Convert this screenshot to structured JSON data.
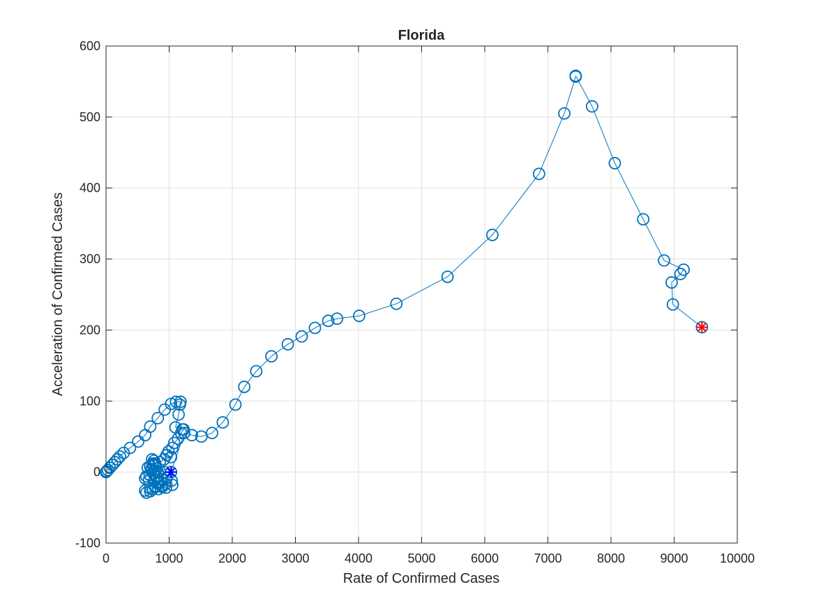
{
  "chart_data": {
    "type": "scatter",
    "title": "Florida",
    "xlabel": "Rate of Confirmed Cases",
    "ylabel": "Acceleration of Confirmed Cases",
    "xlim": [
      0,
      10000
    ],
    "ylim": [
      -100,
      600
    ],
    "xticks": [
      0,
      1000,
      2000,
      3000,
      4000,
      5000,
      6000,
      7000,
      8000,
      9000,
      10000
    ],
    "yticks": [
      -100,
      0,
      100,
      200,
      300,
      400,
      500,
      600
    ],
    "xtick_labels": [
      "0",
      "1000",
      "2000",
      "3000",
      "4000",
      "5000",
      "6000",
      "7000",
      "8000",
      "9000",
      "10000"
    ],
    "ytick_labels": [
      "-100",
      "0",
      "100",
      "200",
      "300",
      "400",
      "500",
      "600"
    ],
    "grid": true,
    "series_color": "#0072BD",
    "start_marker": {
      "x": 1030,
      "y": 0,
      "color": "#0000FF"
    },
    "end_marker": {
      "x": 9440,
      "y": 204,
      "color": "#FF0000"
    },
    "series": [
      {
        "marker": "circle",
        "line": true,
        "points": [
          [
            0,
            0
          ],
          [
            10,
            1
          ],
          [
            30,
            3
          ],
          [
            60,
            6
          ],
          [
            100,
            10
          ],
          [
            140,
            14
          ],
          [
            180,
            18
          ],
          [
            220,
            22
          ],
          [
            280,
            27
          ],
          [
            380,
            34
          ],
          [
            510,
            43
          ],
          [
            620,
            52
          ],
          [
            700,
            64
          ],
          [
            820,
            76
          ],
          [
            930,
            88
          ],
          [
            1030,
            96
          ],
          [
            1110,
            99
          ],
          [
            1180,
            99
          ],
          [
            1170,
            95
          ],
          [
            1150,
            81
          ],
          [
            1100,
            63
          ],
          [
            1210,
            60
          ],
          [
            1230,
            60
          ],
          [
            1190,
            55
          ],
          [
            1140,
            47
          ],
          [
            1080,
            41
          ],
          [
            1050,
            34
          ],
          [
            990,
            29
          ],
          [
            960,
            24
          ],
          [
            1030,
            21
          ],
          [
            920,
            18
          ],
          [
            850,
            14
          ],
          [
            780,
            12
          ],
          [
            740,
            10
          ],
          [
            700,
            8
          ],
          [
            660,
            6
          ],
          [
            720,
            4
          ],
          [
            780,
            2
          ],
          [
            820,
            0
          ],
          [
            750,
            -2
          ],
          [
            690,
            -4
          ],
          [
            640,
            -6
          ],
          [
            620,
            -9
          ],
          [
            680,
            -11
          ],
          [
            760,
            -13
          ],
          [
            830,
            -16
          ],
          [
            880,
            -19
          ],
          [
            950,
            -22
          ],
          [
            1050,
            -18
          ],
          [
            1040,
            -12
          ],
          [
            960,
            -8
          ],
          [
            880,
            -10
          ],
          [
            830,
            -14
          ],
          [
            780,
            -20
          ],
          [
            740,
            -24
          ],
          [
            700,
            -27
          ],
          [
            640,
            -29
          ],
          [
            620,
            -26
          ],
          [
            700,
            -23
          ],
          [
            780,
            -21
          ],
          [
            830,
            -24
          ],
          [
            890,
            -21
          ],
          [
            940,
            -17
          ],
          [
            870,
            -14
          ],
          [
            800,
            -7
          ],
          [
            760,
            -2
          ],
          [
            720,
            3
          ],
          [
            700,
            8
          ],
          [
            740,
            12
          ],
          [
            760,
            16
          ],
          [
            730,
            18
          ],
          [
            780,
            11
          ],
          [
            800,
            5
          ],
          [
            850,
            1
          ],
          [
            930,
            0
          ],
          [
            1030,
            0
          ],
          [
            1240,
            55
          ],
          [
            1360,
            52
          ],
          [
            1510,
            50
          ],
          [
            1680,
            55
          ],
          [
            1850,
            70
          ],
          [
            2050,
            95
          ],
          [
            2190,
            120
          ],
          [
            2380,
            142
          ],
          [
            2620,
            163
          ],
          [
            2880,
            180
          ],
          [
            3100,
            191
          ],
          [
            3310,
            203
          ],
          [
            3520,
            213
          ],
          [
            3660,
            216
          ],
          [
            4010,
            220
          ],
          [
            4600,
            237
          ],
          [
            5410,
            275
          ],
          [
            6120,
            334
          ],
          [
            6860,
            420
          ],
          [
            7260,
            505
          ],
          [
            7440,
            557
          ],
          [
            7440,
            558
          ],
          [
            7700,
            515
          ],
          [
            8060,
            435
          ],
          [
            8510,
            356
          ],
          [
            8840,
            298
          ],
          [
            9150,
            285
          ],
          [
            9100,
            279
          ],
          [
            8960,
            267
          ],
          [
            8980,
            236
          ],
          [
            9440,
            204
          ]
        ]
      }
    ]
  }
}
